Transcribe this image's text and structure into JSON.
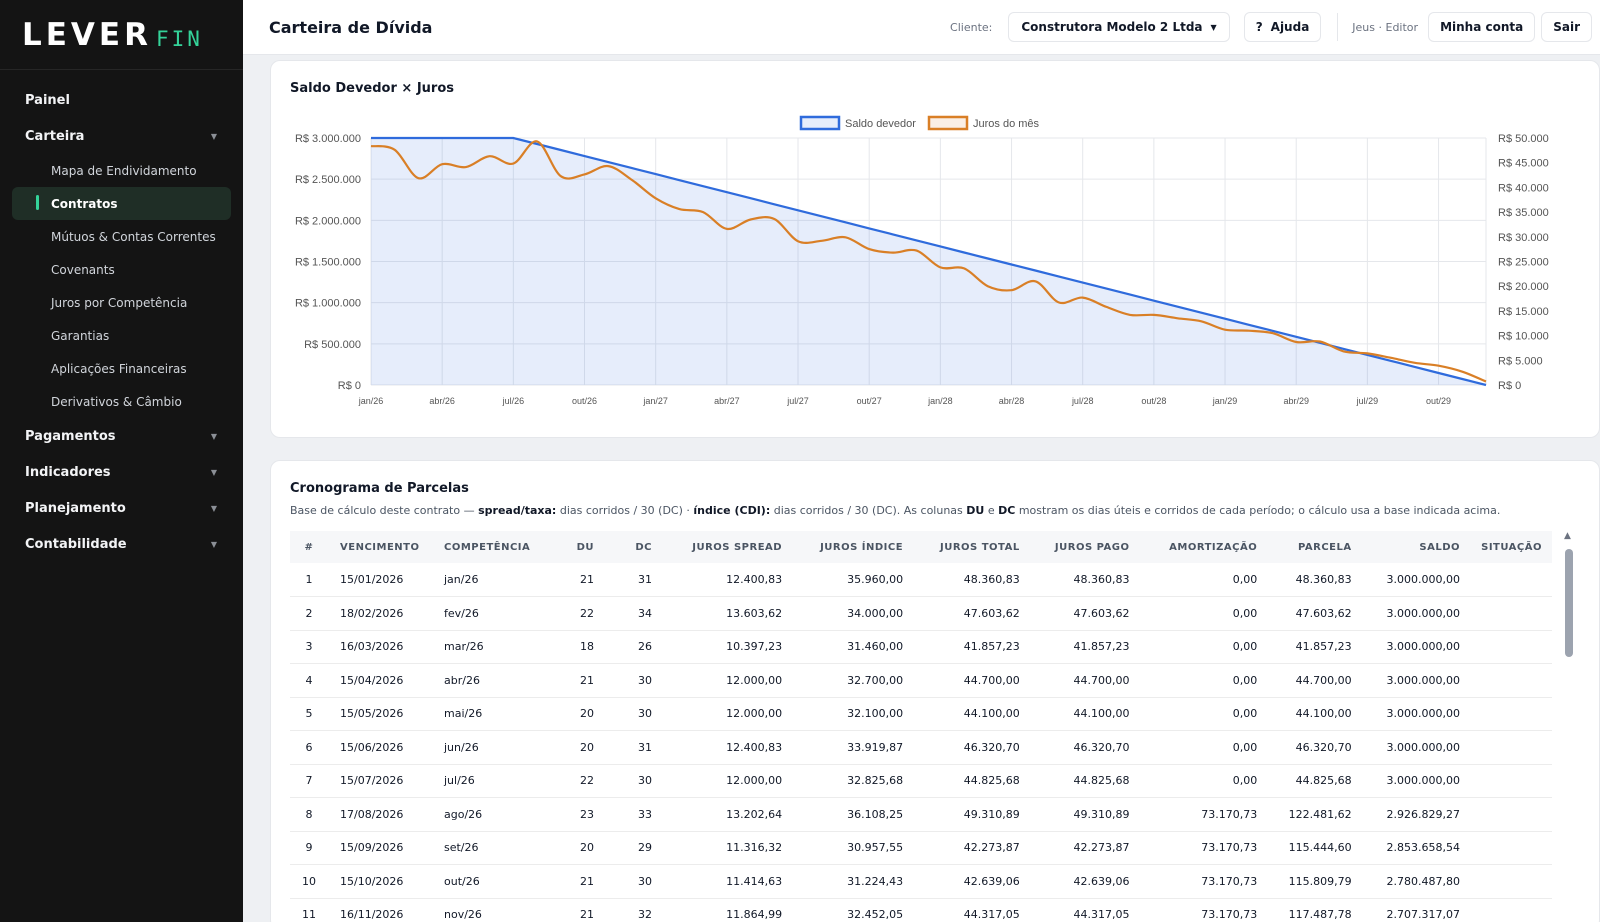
{
  "brand": {
    "main": "LEVER",
    "sub": "FIN"
  },
  "sidebar": {
    "items": [
      {
        "label": "Painel",
        "type": "group",
        "caret": false
      },
      {
        "label": "Carteira",
        "type": "group",
        "caret": true
      },
      {
        "label": "Mapa de Endividamento",
        "type": "sub"
      },
      {
        "label": "Contratos",
        "type": "sub",
        "active": true
      },
      {
        "label": "Mútuos & Contas Correntes",
        "type": "sub"
      },
      {
        "label": "Covenants",
        "type": "sub"
      },
      {
        "label": "Juros por Competência",
        "type": "sub"
      },
      {
        "label": "Garantias",
        "type": "sub"
      },
      {
        "label": "Aplicações Financeiras",
        "type": "sub"
      },
      {
        "label": "Derivativos & Câmbio",
        "type": "sub"
      },
      {
        "label": "Pagamentos",
        "type": "group",
        "caret": true
      },
      {
        "label": "Indicadores",
        "type": "group",
        "caret": true
      },
      {
        "label": "Planejamento",
        "type": "group",
        "caret": true
      },
      {
        "label": "Contabilidade",
        "type": "group",
        "caret": true
      }
    ]
  },
  "header": {
    "title": "Carteira de Dívida",
    "cliente_label": "Cliente:",
    "client_name": "Construtora Modelo 2 Ltda",
    "help_icon": "?",
    "help_label": "Ajuda",
    "user_label": "Jeus · Editor",
    "account_label": "Minha conta",
    "logout_label": "Sair"
  },
  "colors": {
    "accent": "#34d399",
    "sidebar_bg": "#141414",
    "saldo": "#2f6bdc",
    "juros": "#d97f26"
  },
  "chart": {
    "title": "Saldo Devedor × Juros"
  },
  "chart_data": {
    "type": "line",
    "title": "Saldo Devedor × Juros",
    "x_ticks": [
      "jan/26",
      "abr/26",
      "jul/26",
      "out/26",
      "jan/27",
      "abr/27",
      "jul/27",
      "out/27",
      "jan/28",
      "abr/28",
      "jul/28",
      "out/28",
      "jan/29",
      "abr/29",
      "jul/29",
      "out/29"
    ],
    "y_left_ticks": [
      "R$ 3.000.000",
      "R$ 2.500.000",
      "R$ 2.000.000",
      "R$ 1.500.000",
      "R$ 1.000.000",
      "R$ 500.000",
      "R$ 0"
    ],
    "y_right_ticks": [
      "R$ 50.000",
      "R$ 45.000",
      "R$ 40.000",
      "R$ 35.000",
      "R$ 30.000",
      "R$ 25.000",
      "R$ 20.000",
      "R$ 15.000",
      "R$ 10.000",
      "R$ 5.000",
      "R$ 0"
    ],
    "ylim_left": [
      0,
      3000000
    ],
    "ylim_right": [
      0,
      50000
    ],
    "legend_position": "top-center",
    "grid": true,
    "series": [
      {
        "name": "Saldo devedor",
        "axis": "left",
        "fill": true,
        "values": [
          3000000,
          3000000,
          3000000,
          3000000,
          3000000,
          3000000,
          3000000,
          2926829,
          2853659,
          2780488,
          2707317,
          2634146,
          2560976,
          2487805,
          2414634,
          2341463,
          2268293,
          2195122,
          2121951,
          2048780,
          1975610,
          1902439,
          1829268,
          1756098,
          1682927,
          1609756,
          1536585,
          1463415,
          1390244,
          1317073,
          1243902,
          1170732,
          1097561,
          1024390,
          951220,
          878049,
          804878,
          731707,
          658537,
          585366,
          512195,
          439024,
          365854,
          292683,
          219512,
          146341,
          73171,
          0
        ]
      },
      {
        "name": "Juros do mês",
        "axis": "right",
        "fill": false,
        "values": [
          48361,
          47604,
          41857,
          44700,
          44100,
          46321,
          44826,
          49311,
          42274,
          42639,
          44317,
          41500,
          37800,
          35600,
          35000,
          31600,
          33500,
          33600,
          29100,
          29200,
          29900,
          27500,
          26800,
          27200,
          23800,
          23600,
          20000,
          19200,
          21000,
          16700,
          17700,
          15800,
          14200,
          14200,
          13500,
          12900,
          11200,
          11000,
          10500,
          8700,
          8800,
          6800,
          6400,
          5500,
          4500,
          3900,
          2700,
          700
        ]
      }
    ]
  },
  "schedule": {
    "title": "Cronograma de Parcelas",
    "desc_prefix": "Base de cálculo deste contrato — ",
    "desc_spread_label": "spread/taxa:",
    "desc_spread_value": " dias corridos / 30 (DC) · ",
    "desc_index_label": "índice (CDI):",
    "desc_index_value": " dias corridos / 30 (DC). As colunas ",
    "desc_du": "DU",
    "desc_and": " e ",
    "desc_dc": "DC",
    "desc_suffix": " mostram os dias úteis e corridos de cada período; o cálculo usa a base indicada acima.",
    "columns": [
      "#",
      "Vencimento",
      "Competência",
      "DU",
      "DC",
      "Juros Spread",
      "Juros Índice",
      "Juros Total",
      "Juros Pago",
      "Amortização",
      "Parcela",
      "Saldo",
      "Situação"
    ],
    "rows": [
      [
        "1",
        "15/01/2026",
        "jan/26",
        "21",
        "31",
        "12.400,83",
        "35.960,00",
        "48.360,83",
        "48.360,83",
        "0,00",
        "48.360,83",
        "3.000.000,00",
        ""
      ],
      [
        "2",
        "18/02/2026",
        "fev/26",
        "22",
        "34",
        "13.603,62",
        "34.000,00",
        "47.603,62",
        "47.603,62",
        "0,00",
        "47.603,62",
        "3.000.000,00",
        ""
      ],
      [
        "3",
        "16/03/2026",
        "mar/26",
        "18",
        "26",
        "10.397,23",
        "31.460,00",
        "41.857,23",
        "41.857,23",
        "0,00",
        "41.857,23",
        "3.000.000,00",
        ""
      ],
      [
        "4",
        "15/04/2026",
        "abr/26",
        "21",
        "30",
        "12.000,00",
        "32.700,00",
        "44.700,00",
        "44.700,00",
        "0,00",
        "44.700,00",
        "3.000.000,00",
        ""
      ],
      [
        "5",
        "15/05/2026",
        "mai/26",
        "20",
        "30",
        "12.000,00",
        "32.100,00",
        "44.100,00",
        "44.100,00",
        "0,00",
        "44.100,00",
        "3.000.000,00",
        ""
      ],
      [
        "6",
        "15/06/2026",
        "jun/26",
        "20",
        "31",
        "12.400,83",
        "33.919,87",
        "46.320,70",
        "46.320,70",
        "0,00",
        "46.320,70",
        "3.000.000,00",
        ""
      ],
      [
        "7",
        "15/07/2026",
        "jul/26",
        "22",
        "30",
        "12.000,00",
        "32.825,68",
        "44.825,68",
        "44.825,68",
        "0,00",
        "44.825,68",
        "3.000.000,00",
        ""
      ],
      [
        "8",
        "17/08/2026",
        "ago/26",
        "23",
        "33",
        "13.202,64",
        "36.108,25",
        "49.310,89",
        "49.310,89",
        "73.170,73",
        "122.481,62",
        "2.926.829,27",
        ""
      ],
      [
        "9",
        "15/09/2026",
        "set/26",
        "20",
        "29",
        "11.316,32",
        "30.957,55",
        "42.273,87",
        "42.273,87",
        "73.170,73",
        "115.444,60",
        "2.853.658,54",
        ""
      ],
      [
        "10",
        "15/10/2026",
        "out/26",
        "21",
        "30",
        "11.414,63",
        "31.224,43",
        "42.639,06",
        "42.639,06",
        "73.170,73",
        "115.809,79",
        "2.780.487,80",
        ""
      ],
      [
        "11",
        "16/11/2026",
        "nov/26",
        "21",
        "32",
        "11.864,99",
        "32.452,05",
        "44.317,05",
        "44.317,05",
        "73.170,73",
        "117.487,78",
        "2.707.317,07",
        ""
      ]
    ]
  }
}
